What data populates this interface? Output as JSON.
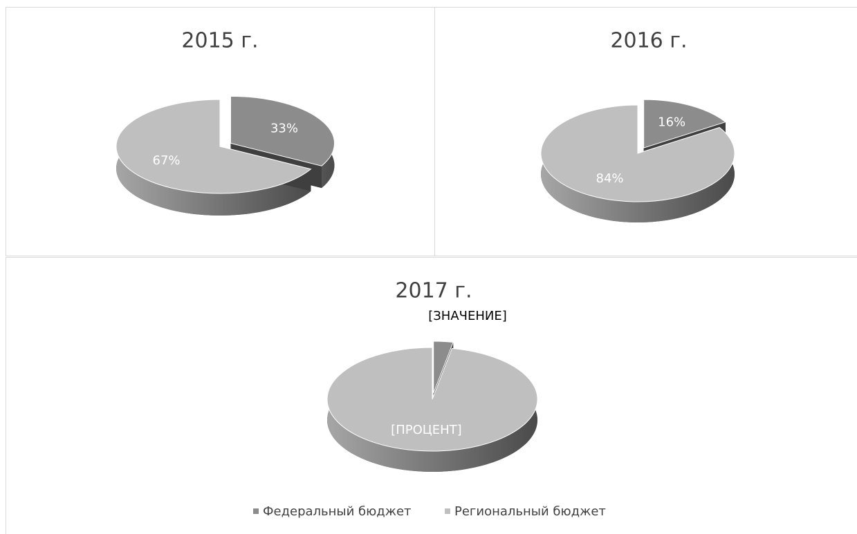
{
  "chart_data": [
    {
      "type": "pie",
      "title": "2015 г.",
      "categories": [
        "Федеральный бюджет",
        "Региональный бюджет"
      ],
      "values": [
        33,
        67
      ],
      "value_labels": [
        "33%",
        "67%"
      ],
      "colors": [
        "#8c8c8c",
        "#bfbfbf"
      ]
    },
    {
      "type": "pie",
      "title": "2016 г.",
      "categories": [
        "Федеральный бюджет",
        "Региональный бюджет"
      ],
      "values": [
        16,
        84
      ],
      "value_labels": [
        "16%",
        "84%"
      ],
      "colors": [
        "#8c8c8c",
        "#bfbfbf"
      ]
    },
    {
      "type": "pie",
      "title": "2017 г.",
      "categories": [
        "Федеральный бюджет",
        "Региональный бюджет"
      ],
      "values": [
        3,
        97
      ],
      "value_labels": [
        "[ЗНАЧЕНИЕ]",
        "[ПРОЦЕНТ]"
      ],
      "colors": [
        "#8c8c8c",
        "#bfbfbf"
      ]
    }
  ]
}
